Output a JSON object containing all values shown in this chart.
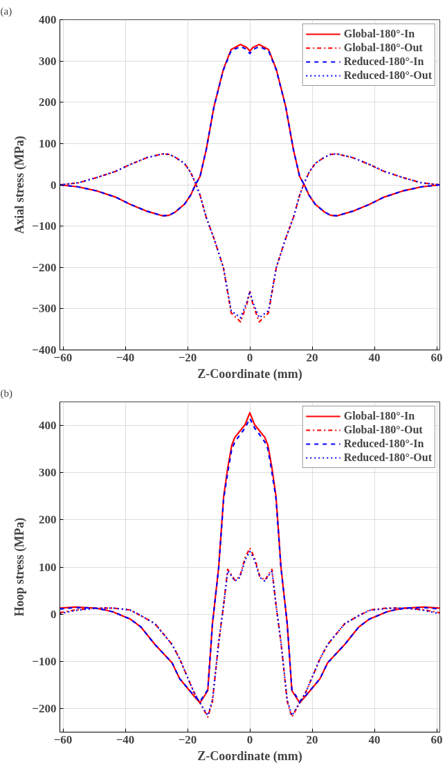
{
  "chart_data": [
    {
      "type": "line",
      "annotations": [
        "(a)"
      ],
      "xlabel": "Z-Coordinate (mm)",
      "ylabel": "Axial stress (MPa)",
      "xlim": [
        -61,
        61
      ],
      "xticks": [
        -60,
        -40,
        -20,
        0,
        20,
        40,
        60
      ],
      "ylim": [
        -400,
        400
      ],
      "yticks": [
        -400,
        -300,
        -200,
        -100,
        0,
        100,
        200,
        300,
        400
      ],
      "grid": true,
      "legend": "top right",
      "x": [
        -61,
        -55,
        -49,
        -43,
        -38.5,
        -33,
        -28,
        -26,
        -24,
        -21,
        -19,
        -17.5,
        -16,
        -14,
        -11.5,
        -8.5,
        -6,
        -3,
        -1,
        0,
        1,
        3,
        6,
        8.5,
        11.5,
        14,
        16,
        17.5,
        19,
        21,
        24,
        26,
        28,
        33,
        38.5,
        43,
        49,
        55,
        61
      ],
      "series": [
        {
          "name": "Global-180°-In",
          "color": "#ff0000",
          "line_style": "solid",
          "values": [
            0,
            -5,
            -15,
            -30,
            -47,
            -64,
            -75,
            -74,
            -66,
            -47,
            -25,
            0,
            20,
            85,
            190,
            280,
            328,
            340,
            333,
            324,
            333,
            340,
            328,
            280,
            190,
            85,
            20,
            0,
            -25,
            -47,
            -66,
            -74,
            -75,
            -64,
            -47,
            -30,
            -15,
            -5,
            0
          ]
        },
        {
          "name": "Global-180°-Out",
          "color": "#ff0000",
          "line_style": "dashdot",
          "values": [
            0,
            5,
            18,
            33,
            49,
            66,
            75,
            74,
            67,
            52,
            30,
            5,
            -25,
            -79,
            -130,
            -200,
            -310,
            -332,
            -290,
            -259,
            -290,
            -332,
            -310,
            -200,
            -130,
            -79,
            -25,
            5,
            30,
            52,
            67,
            74,
            75,
            66,
            49,
            33,
            18,
            5,
            0
          ]
        },
        {
          "name": "Reduced-180°-In",
          "color": "#0000ff",
          "line_style": "dashed",
          "values": [
            0,
            -5,
            -15,
            -30,
            -47,
            -64,
            -75,
            -74,
            -66,
            -47,
            -25,
            0,
            20,
            85,
            190,
            278,
            325,
            335,
            328,
            318,
            328,
            335,
            325,
            278,
            190,
            85,
            20,
            0,
            -25,
            -47,
            -66,
            -74,
            -75,
            -64,
            -47,
            -30,
            -15,
            -5,
            0
          ]
        },
        {
          "name": "Reduced-180°-Out",
          "color": "#0000ff",
          "line_style": "dotted",
          "values": [
            0,
            5,
            18,
            33,
            49,
            66,
            75,
            74,
            67,
            52,
            30,
            5,
            -25,
            -79,
            -130,
            -200,
            -305,
            -322,
            -285,
            -258,
            -285,
            -322,
            -305,
            -200,
            -130,
            -79,
            -25,
            5,
            30,
            52,
            67,
            74,
            75,
            66,
            49,
            33,
            18,
            5,
            0
          ]
        }
      ]
    },
    {
      "type": "line",
      "annotations": [
        "(b)"
      ],
      "xlabel": "Z-Coordinate (mm)",
      "ylabel": "Hoop stress (MPa)",
      "xlim": [
        -61,
        61
      ],
      "xticks": [
        -60,
        -40,
        -20,
        0,
        20,
        40,
        60
      ],
      "ylim": [
        -250,
        450
      ],
      "yticks": [
        -200,
        -100,
        0,
        100,
        200,
        300,
        400
      ],
      "grid": true,
      "legend": "top right",
      "x": [
        -61,
        -56,
        -50,
        -46.5,
        -44,
        -38.5,
        -35,
        -30.5,
        -25,
        -22.5,
        -18,
        -16,
        -13.5,
        -12,
        -10,
        -8.4,
        -7.1,
        -5.8,
        -4.8,
        -3.2,
        -1.5,
        0,
        1.5,
        3.2,
        4.8,
        5.8,
        7.1,
        8.4,
        10,
        12,
        13.5,
        16,
        18,
        22.5,
        25,
        30.5,
        35,
        38.5,
        44,
        46.5,
        50,
        56,
        61
      ],
      "series": [
        {
          "name": "Global-180°-In",
          "color": "#ff0000",
          "line_style": "solid",
          "values": [
            13,
            15,
            13,
            9,
            5,
            -10,
            -27,
            -64,
            -103,
            -137,
            -173,
            -188,
            -162,
            -20,
            100,
            250,
            310,
            358,
            375,
            388,
            402,
            427,
            402,
            388,
            375,
            358,
            310,
            250,
            100,
            -20,
            -162,
            -188,
            -173,
            -137,
            -103,
            -64,
            -27,
            -10,
            5,
            9,
            13,
            15,
            13
          ]
        },
        {
          "name": "Global-180°-Out",
          "color": "#ff0000",
          "line_style": "dashdot",
          "values": [
            3,
            9,
            13,
            13,
            13,
            9,
            -3,
            -20,
            -64,
            -95,
            -165,
            -188,
            -218,
            -185,
            -60,
            20,
            95,
            82,
            72,
            80,
            120,
            140,
            120,
            80,
            72,
            82,
            95,
            20,
            -60,
            -185,
            -218,
            -188,
            -165,
            -95,
            -64,
            -20,
            -3,
            9,
            13,
            13,
            13,
            9,
            3
          ]
        },
        {
          "name": "Reduced-180°-In",
          "color": "#0000ff",
          "line_style": "dashed",
          "values": [
            11,
            14,
            13,
            9,
            5,
            -10,
            -27,
            -64,
            -103,
            -137,
            -172,
            -185,
            -160,
            -20,
            98,
            245,
            300,
            350,
            365,
            380,
            395,
            415,
            395,
            380,
            365,
            350,
            300,
            245,
            98,
            -20,
            -160,
            -185,
            -172,
            -137,
            -103,
            -64,
            -27,
            -10,
            5,
            9,
            13,
            14,
            11
          ]
        },
        {
          "name": "Reduced-180°-Out",
          "color": "#0000ff",
          "line_style": "dotted",
          "values": [
            1,
            8,
            12,
            13,
            13,
            9,
            -3,
            -20,
            -64,
            -95,
            -165,
            -188,
            -215,
            -182,
            -60,
            20,
            92,
            80,
            70,
            78,
            115,
            133,
            115,
            78,
            70,
            80,
            92,
            20,
            -60,
            -182,
            -215,
            -188,
            -165,
            -95,
            -64,
            -20,
            -3,
            8,
            12,
            13,
            13,
            8,
            1
          ]
        }
      ]
    }
  ]
}
